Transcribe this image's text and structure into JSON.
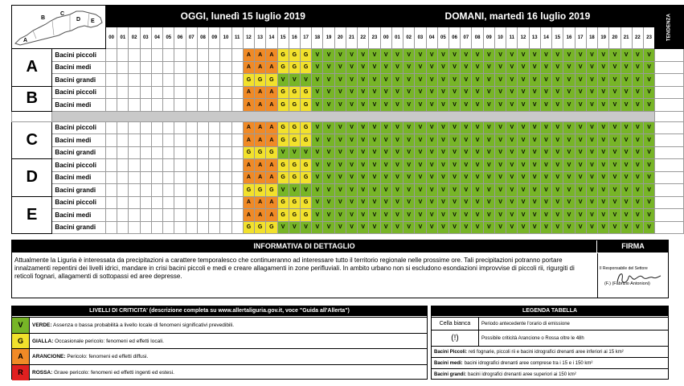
{
  "header": {
    "today": "OGGI, lunedì 15 luglio 2019",
    "tomorrow": "DOMANI, martedì 16 luglio 2019",
    "tendenza": "TENDENZA",
    "hours": [
      "00",
      "01",
      "02",
      "03",
      "04",
      "05",
      "06",
      "07",
      "08",
      "09",
      "10",
      "11",
      "12",
      "13",
      "14",
      "15",
      "16",
      "17",
      "18",
      "19",
      "20",
      "21",
      "22",
      "23"
    ]
  },
  "map": {
    "zone_letters": [
      "A",
      "B",
      "C",
      "D",
      "E"
    ]
  },
  "zones": [
    {
      "zone": "A",
      "rows": [
        {
          "basin": "Bacini piccoli",
          "today": "WWWWWWWWWWWWAAAGGGVVVVVV",
          "tomorrow": "VVVVVVVVVVVVVVVVVVVVVVVV"
        },
        {
          "basin": "Bacini medi",
          "today": "WWWWWWWWWWWWAAAGGGVVVVVV",
          "tomorrow": "VVVVVVVVVVVVVVVVVVVVVVVV"
        },
        {
          "basin": "Bacini grandi",
          "today": "WWWWWWWWWWWWGGGVVVVVVVVV",
          "tomorrow": "VVVVVVVVVVVVVVVVVVVVVVVV"
        }
      ]
    },
    {
      "zone": "B",
      "rows": [
        {
          "basin": "Bacini piccoli",
          "today": "WWWWWWWWWWWWAAAGGGVVVVVV",
          "tomorrow": "VVVVVVVVVVVVVVVVVVVVVVVV"
        },
        {
          "basin": "Bacini medi",
          "today": "WWWWWWWWWWWWAAAGGGVVVVVV",
          "tomorrow": "VVVVVVVVVVVVVVVVVVVVVVVV"
        }
      ]
    },
    {
      "zone": "C",
      "rows": [
        {
          "basin": "Bacini piccoli",
          "today": "WWWWWWWWWWWWAAAGGGVVVVVV",
          "tomorrow": "VVVVVVVVVVVVVVVVVVVVVVVV"
        },
        {
          "basin": "Bacini medi",
          "today": "WWWWWWWWWWWWAAAGGGVVVVVV",
          "tomorrow": "VVVVVVVVVVVVVVVVVVVVVVVV"
        },
        {
          "basin": "Bacini grandi",
          "today": "WWWWWWWWWWWWGGGVVVVVVVVV",
          "tomorrow": "VVVVVVVVVVVVVVVVVVVVVVVV"
        }
      ]
    },
    {
      "zone": "D",
      "rows": [
        {
          "basin": "Bacini piccoli",
          "today": "WWWWWWWWWWWWAAAGGGVVVVVV",
          "tomorrow": "VVVVVVVVVVVVVVVVVVVVVVVV"
        },
        {
          "basin": "Bacini medi",
          "today": "WWWWWWWWWWWWAAAGGGVVVVVV",
          "tomorrow": "VVVVVVVVVVVVVVVVVVVVVVVV"
        },
        {
          "basin": "Bacini grandi",
          "today": "WWWWWWWWWWWWGGGVVVVVVVVV",
          "tomorrow": "VVVVVVVVVVVVVVVVVVVVVVVV"
        }
      ]
    },
    {
      "zone": "E",
      "rows": [
        {
          "basin": "Bacini piccoli",
          "today": "WWWWWWWWWWWWAAAGGGVVVVVV",
          "tomorrow": "VVVVVVVVVVVVVVVVVVVVVVVV"
        },
        {
          "basin": "Bacini medi",
          "today": "WWWWWWWWWWWWAAAGGGVVVVVV",
          "tomorrow": "VVVVVVVVVVVVVVVVVVVVVVVV"
        },
        {
          "basin": "Bacini grandi",
          "today": "WWWWWWWWWWWWGGGVVVVVVVVV",
          "tomorrow": "VVVVVVVVVVVVVVVVVVVVVVVV"
        }
      ]
    }
  ],
  "colors": {
    "V": "#77b527",
    "G": "#f2e12c",
    "A": "#f08a26",
    "R": "#e02020",
    "W": "#ffffff"
  },
  "details": {
    "title": "INFORMATIVA DI DETTAGLIO",
    "firma_title": "FIRMA",
    "text": "Attualmente la Liguria è interessata da precipitazioni a carattere temporalesco che continueranno ad interessare tutto il territorio regionale nelle prossime ore. Tali precipitazioni potranno portare innalzamenti repentini dei livelli idrici, mandare in crisi bacini piccoli e medi e creare allagamenti in zone perifluviali. In ambito urbano non si escludono esondazioni improvvise di piccoli rii, rigurgiti di reticoli fognari, allagamenti di sottopassi ed aree depresse.",
    "firma_label": "Il Responsabile del Settore",
    "firma_name": "(F.) (Fabrizio Antonioni)"
  },
  "levels": {
    "title": "LIVELLI DI CRITICITA' (descrizione completa su www.allertaliguria.gov.it, voce \"Guida all'Allerta\")",
    "items": [
      {
        "code": "V",
        "name": "VERDE:",
        "desc": "Assenza o bassa probabilità a livello locale di fenomeni significativi prevedibili."
      },
      {
        "code": "G",
        "name": "GIALLA:",
        "desc": "Occasionale pericolo: fenomeni ed effetti locali."
      },
      {
        "code": "A",
        "name": "ARANCIONE:",
        "desc": "Pericolo: fenomeni ed effetti diffusi."
      },
      {
        "code": "R",
        "name": "ROSSA:",
        "desc": "Grave pericolo: fenomeni ed effetti ingenti ed estesi."
      }
    ]
  },
  "legend": {
    "title": "LEGENDA TABELLA",
    "cella_key": "Cella bianca",
    "cella_val": "Periodo antecedente l'orario di emissione",
    "excl_key": "(!)",
    "excl_val": "Possibile criticità Arancione o Rossa oltre le 48h",
    "piccoli_key": "Bacini Piccoli:",
    "piccoli_val": "reti fognarie, piccoli rii e bacini idrografici drenanti aree inferiori ai 15 km²",
    "medi_key": "Bacini medi:",
    "medi_val": "bacini idrografici drenanti aree comprese tra i 15 e i 150 km²",
    "grandi_key": "Bacini grandi:",
    "grandi_val": "bacini idrografici drenanti aree superiori ai 150 km²"
  }
}
